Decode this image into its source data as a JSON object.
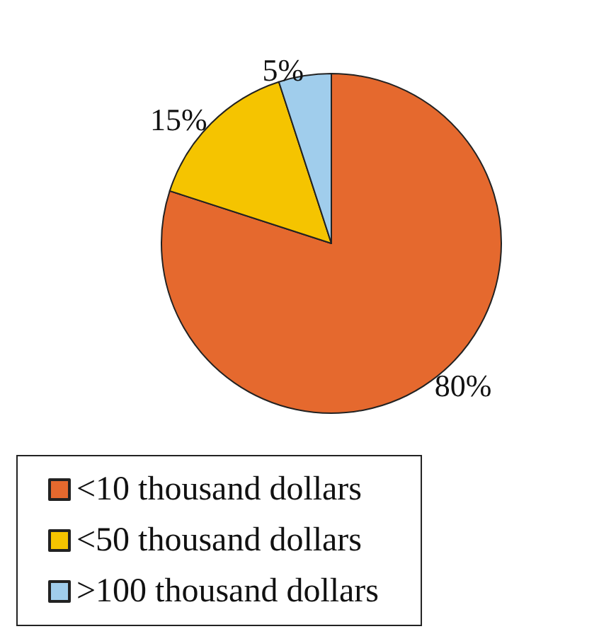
{
  "chart_data": {
    "type": "pie",
    "categories": [
      "<10 thousand dollars",
      "<50 thousand dollars",
      ">100 thousand dollars"
    ],
    "values": [
      80,
      15,
      5
    ],
    "colors": [
      "#e5692e",
      "#f5c400",
      "#a0cdec"
    ],
    "value_labels": [
      "80%",
      "15%",
      "5%"
    ],
    "legend": "bottom"
  }
}
